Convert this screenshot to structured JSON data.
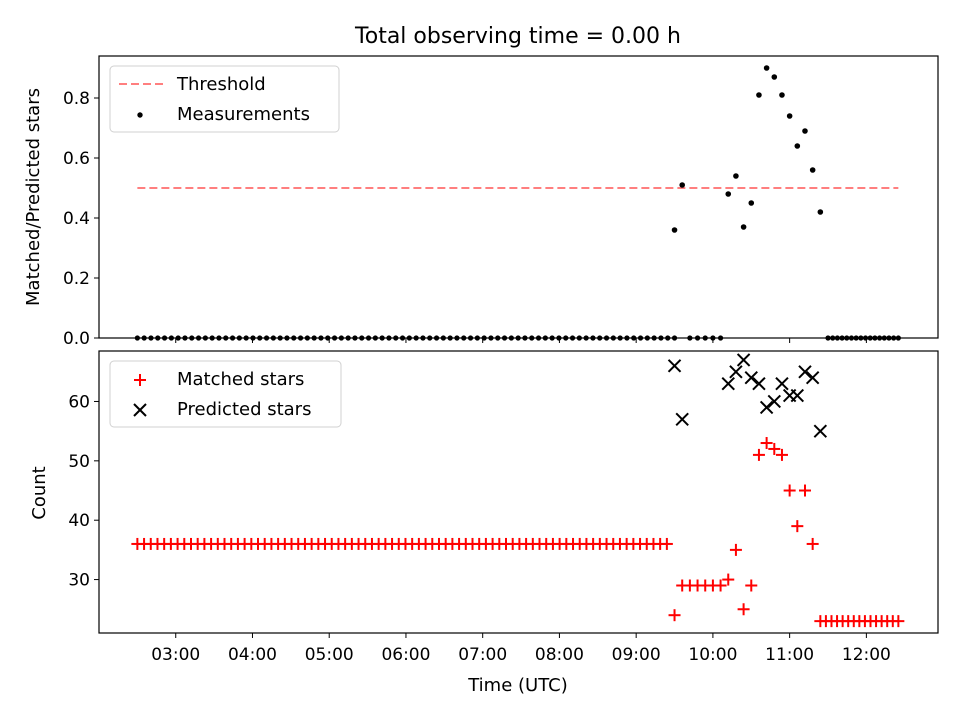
{
  "chart_data": [
    {
      "type": "scatter",
      "title": "Total observing time = 0.00 h",
      "xlabel": "",
      "ylabel": "Matched/Predicted stars",
      "xlim": [
        "02:00",
        "12:56"
      ],
      "ylim": [
        0,
        0.94
      ],
      "yticks": [
        "0.0",
        "0.2",
        "0.4",
        "0.6",
        "0.8"
      ],
      "legend": {
        "position": "top-left"
      },
      "threshold": {
        "name": "Threshold",
        "value": 0.5,
        "x_start": "02:30",
        "x_end": "12:25",
        "color": "#ff7f7f"
      },
      "series": [
        {
          "name": "Measurements",
          "color": "#000000",
          "points": [
            [
              "09:30",
              0.36
            ],
            [
              "09:36",
              0.51
            ],
            [
              "10:12",
              0.48
            ],
            [
              "10:18",
              0.54
            ],
            [
              "10:24",
              0.37
            ],
            [
              "10:30",
              0.45
            ],
            [
              "10:36",
              0.81
            ],
            [
              "10:42",
              0.9
            ],
            [
              "10:48",
              0.87
            ],
            [
              "10:54",
              0.81
            ],
            [
              "11:00",
              0.74
            ],
            [
              "11:06",
              0.64
            ],
            [
              "11:12",
              0.69
            ],
            [
              "11:18",
              0.56
            ],
            [
              "11:24",
              0.42
            ]
          ],
          "zero_runs": [
            [
              "02:30",
              "09:30",
              80
            ],
            [
              "09:42",
              "10:06",
              5
            ],
            [
              "11:30",
              "12:25",
              16
            ]
          ]
        }
      ]
    },
    {
      "type": "scatter",
      "title": "",
      "xlabel": "Time (UTC)",
      "ylabel": "Count",
      "xlim": [
        "02:00",
        "12:56"
      ],
      "ylim": [
        21,
        68.5
      ],
      "yticks": [
        "30",
        "40",
        "50",
        "60"
      ],
      "xticks": [
        "03:00",
        "04:00",
        "05:00",
        "06:00",
        "07:00",
        "08:00",
        "09:00",
        "10:00",
        "11:00",
        "12:00"
      ],
      "legend": {
        "position": "top-left"
      },
      "series": [
        {
          "name": "Matched stars",
          "marker": "plus",
          "color": "#ff0000",
          "points": [
            [
              "09:30",
              24
            ],
            [
              "10:12",
              30
            ],
            [
              "10:18",
              35
            ],
            [
              "10:24",
              25
            ],
            [
              "10:30",
              29
            ],
            [
              "10:36",
              51
            ],
            [
              "10:42",
              53
            ],
            [
              "10:48",
              52
            ],
            [
              "10:54",
              51
            ],
            [
              "11:00",
              45
            ],
            [
              "11:06",
              39
            ],
            [
              "11:12",
              45
            ],
            [
              "11:18",
              36
            ]
          ],
          "runs": [
            [
              "02:30",
              "09:24",
              80,
              36
            ],
            [
              "09:36",
              "10:06",
              6,
              29
            ],
            [
              "11:24",
              "12:25",
              15,
              23
            ]
          ]
        },
        {
          "name": "Predicted stars",
          "marker": "x",
          "color": "#000000",
          "points": [
            [
              "09:30",
              66
            ],
            [
              "09:36",
              57
            ],
            [
              "10:12",
              63
            ],
            [
              "10:18",
              65
            ],
            [
              "10:24",
              67
            ],
            [
              "10:30",
              64
            ],
            [
              "10:36",
              63
            ],
            [
              "10:42",
              59
            ],
            [
              "10:48",
              60
            ],
            [
              "10:54",
              63
            ],
            [
              "11:00",
              61
            ],
            [
              "11:06",
              61
            ],
            [
              "11:12",
              65
            ],
            [
              "11:18",
              64
            ],
            [
              "11:24",
              55
            ]
          ]
        }
      ]
    }
  ]
}
